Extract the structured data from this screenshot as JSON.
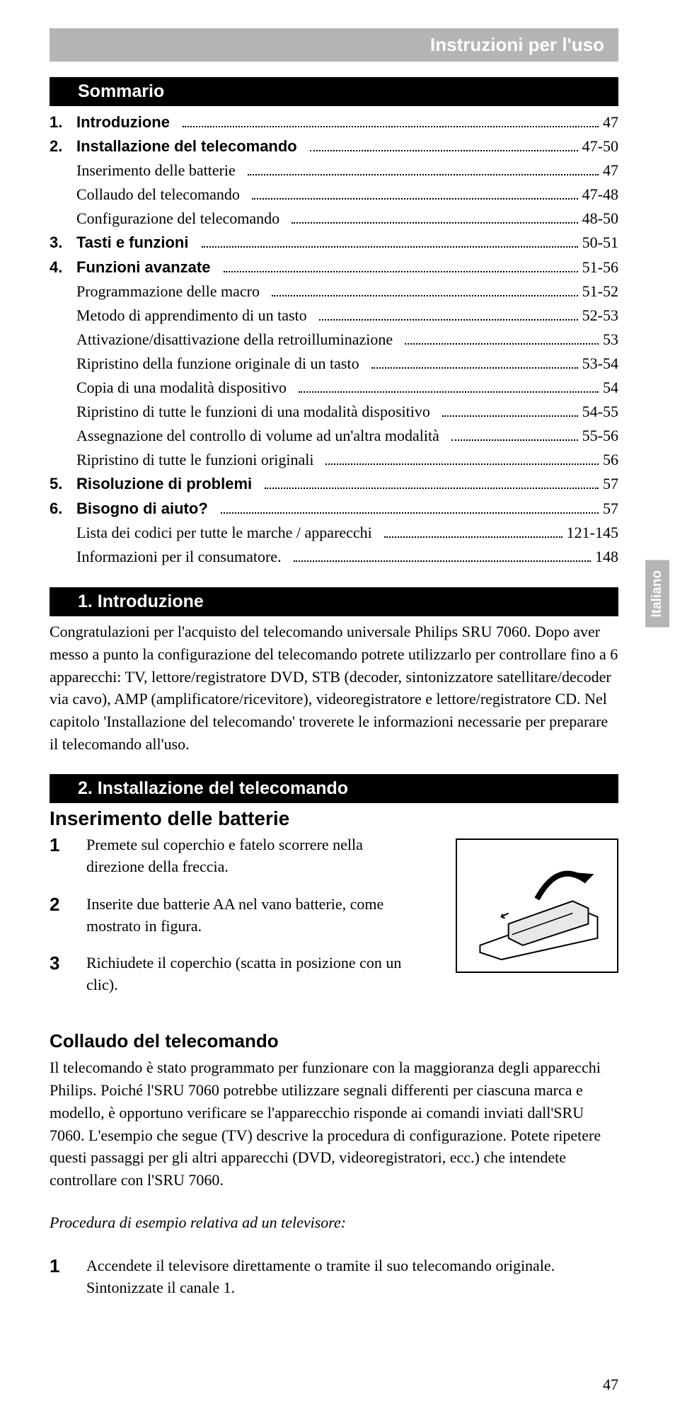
{
  "header": {
    "title": "Instruzioni per l'uso"
  },
  "sideTab": "Italiano",
  "sommarioHeading": "Sommario",
  "toc": [
    {
      "n": "1.",
      "t": "Introduzione",
      "p": "47",
      "bold": true
    },
    {
      "n": "2.",
      "t": "Installazione del telecomando",
      "p": "47-50",
      "bold": true
    },
    {
      "n": "",
      "t": "Inserimento delle batterie",
      "p": "47",
      "bold": false
    },
    {
      "n": "",
      "t": "Collaudo del telecomando",
      "p": "47-48",
      "bold": false
    },
    {
      "n": "",
      "t": "Configurazione del telecomando",
      "p": "48-50",
      "bold": false
    },
    {
      "n": "3.",
      "t": "Tasti e funzioni",
      "p": "50-51",
      "bold": true
    },
    {
      "n": "4.",
      "t": "Funzioni avanzate",
      "p": "51-56",
      "bold": true
    },
    {
      "n": "",
      "t": "Programmazione delle macro",
      "p": "51-52",
      "bold": false
    },
    {
      "n": "",
      "t": "Metodo di apprendimento di un tasto",
      "p": "52-53",
      "bold": false
    },
    {
      "n": "",
      "t": "Attivazione/disattivazione della retroilluminazione",
      "p": "53",
      "bold": false
    },
    {
      "n": "",
      "t": "Ripristino della funzione originale di un tasto",
      "p": "53-54",
      "bold": false
    },
    {
      "n": "",
      "t": "Copia di una modalità dispositivo",
      "p": "54",
      "bold": false
    },
    {
      "n": "",
      "t": "Ripristino di tutte le funzioni di una modalità dispositivo",
      "p": "54-55",
      "bold": false
    },
    {
      "n": "",
      "t": "Assegnazione del controllo di volume ad un'altra modalità",
      "p": "55-56",
      "bold": false
    },
    {
      "n": "",
      "t": "Ripristino di tutte le funzioni originali",
      "p": "56",
      "bold": false
    },
    {
      "n": "5.",
      "t": "Risoluzione di problemi",
      "p": "57",
      "bold": true
    },
    {
      "n": "6.",
      "t": "Bisogno di aiuto?",
      "p": "57",
      "bold": true
    },
    {
      "n": "",
      "t": "Lista dei codici per tutte le marche / apparecchi",
      "p": "121-145",
      "bold": false
    },
    {
      "n": "",
      "t": "Informazioni per il consumatore.",
      "p": "148",
      "bold": false
    }
  ],
  "sec1": {
    "heading": "1. Introduzione",
    "body": "Congratulazioni per l'acquisto del telecomando universale Philips SRU 7060. Dopo aver messo a punto la configurazione del telecomando potrete utilizzarlo per controllare fino a 6 apparecchi: TV, lettore/registratore DVD, STB (decoder, sintonizzatore satellitare/decoder via cavo), AMP (amplificatore/ricevitore), videoregistratore e lettore/registratore CD. Nel capitolo 'Installazione del telecomando' troverete le informazioni necessarie per preparare il telecomando all'uso."
  },
  "sec2": {
    "heading": "2. Installazione del telecomando",
    "sub1": "Inserimento delle batterie",
    "steps1": [
      {
        "n": "1",
        "t": "Premete sul coperchio e fatelo scorrere nella direzione della freccia."
      },
      {
        "n": "2",
        "t": "Inserite due batterie AA nel vano batterie, come mostrato in figura."
      },
      {
        "n": "3",
        "t": "Richiudete il coperchio (scatta in posizione con un clic)."
      }
    ],
    "sub2": "Collaudo del telecomando",
    "body2": "Il telecomando è stato programmato per funzionare con la maggioranza degli apparecchi Philips. Poiché l'SRU 7060 potrebbe utilizzare segnali differenti per ciascuna marca e modello, è opportuno verificare se l'apparecchio risponde ai comandi inviati dall'SRU 7060. L'esempio che segue (TV) descrive la procedura di configurazione. Potete ripetere questi passaggi per gli altri apparecchi (DVD, videoregistratori, ecc.) che intendete controllare con l'SRU 7060.",
    "procHeading": "Procedura di esempio relativa ad un televisore:",
    "steps2": [
      {
        "n": "1",
        "t": "Accendete il televisore direttamente o tramite il suo telecomando originale. Sintonizzate il canale 1."
      }
    ]
  },
  "pageNumber": "47",
  "colors": {
    "barGrey": "#b5b5b5",
    "black": "#000000"
  }
}
